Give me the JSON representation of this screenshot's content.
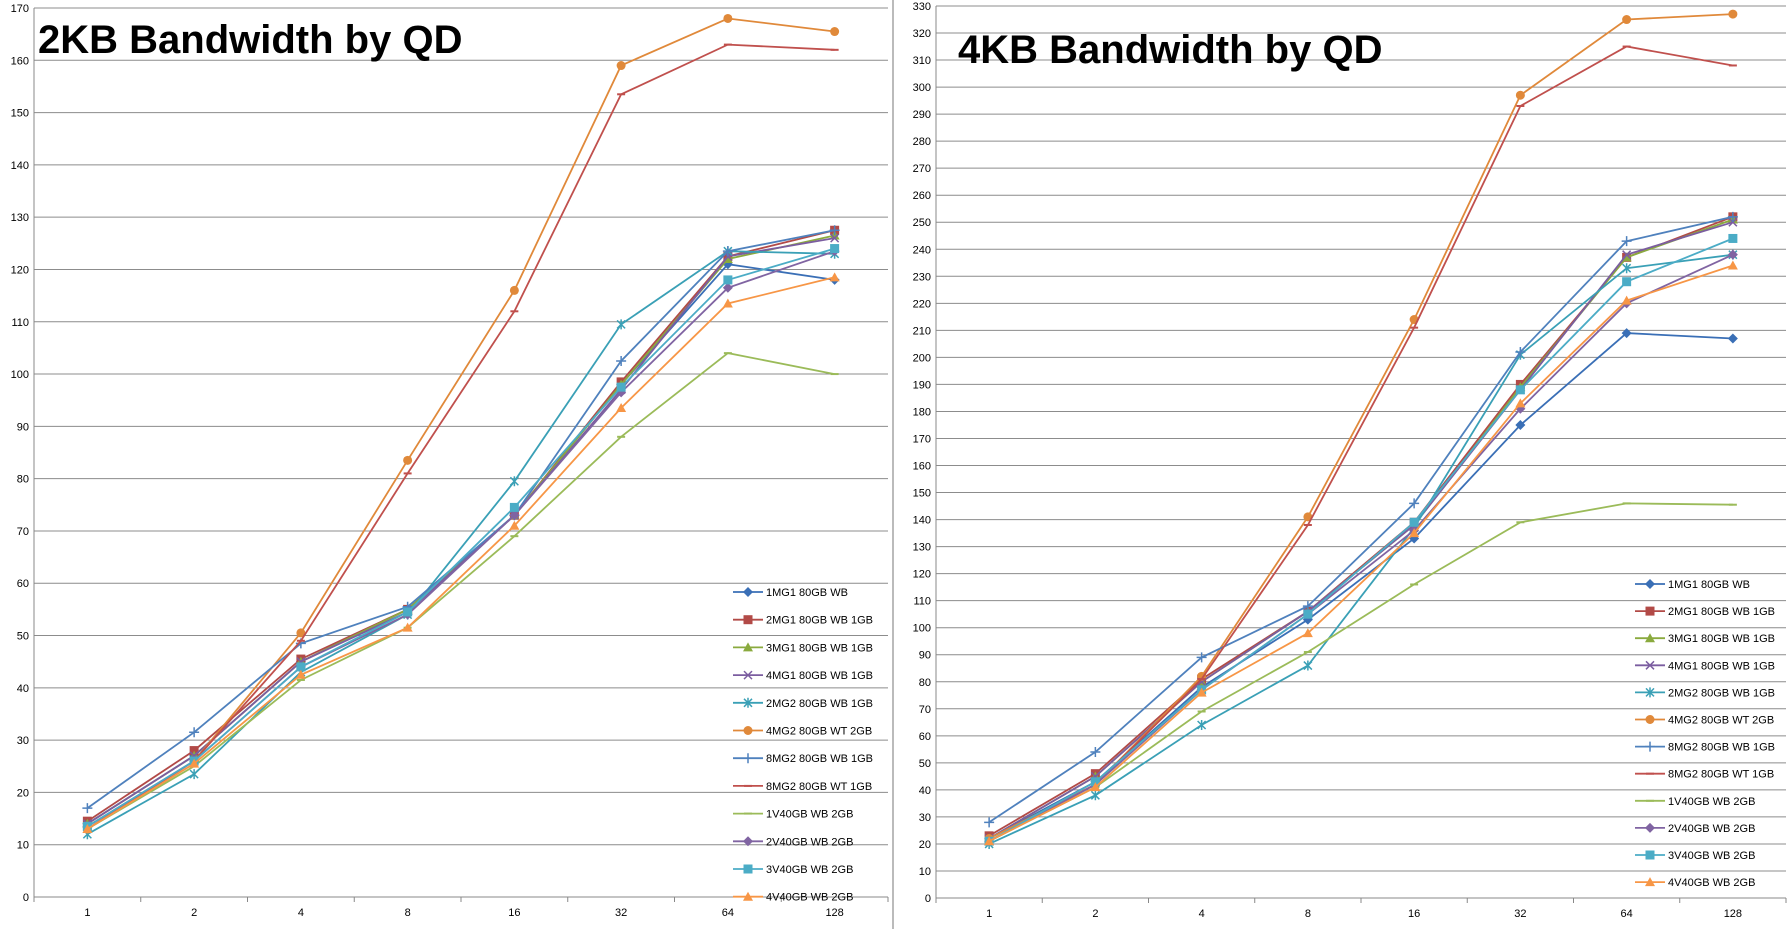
{
  "colors": {
    "1MG1": "#3a6fb6",
    "2MG1": "#b24a47",
    "3MG1": "#8aaa3e",
    "4MG1": "#7b5da0",
    "2MG2": "#3aa0b6",
    "4MG2": "#e0893a",
    "8MG2": "#4f81bd",
    "8MG2WT": "#c0504d",
    "1V40": "#9bbb59",
    "2V40": "#8064a2",
    "3V40": "#4bacc6",
    "4V40": "#f79646",
    "grid": "#8c8c8c",
    "axis": "#888888",
    "divider": "#bbbbbb"
  },
  "chart_data": [
    {
      "type": "line",
      "title": "2KB Bandwidth by QD",
      "xlabel": "",
      "ylabel": "",
      "categories": [
        "1",
        "2",
        "4",
        "8",
        "16",
        "32",
        "64",
        "128"
      ],
      "ylim": [
        0,
        170
      ],
      "ystep": 10,
      "grid": true,
      "legend_placement": "bottom-right",
      "series": [
        {
          "name": "1MG1 80GB WB",
          "marker": "diamond",
          "ckey": "1MG1",
          "values": [
            14,
            27,
            45,
            55,
            73,
            98,
            121,
            118
          ]
        },
        {
          "name": "2MG1 80GB WB 1GB",
          "marker": "square",
          "ckey": "2MG1",
          "values": [
            14.5,
            28,
            45.5,
            55,
            73,
            98.5,
            122.5,
            127.5
          ]
        },
        {
          "name": "3MG1 80GB WB 1GB",
          "marker": "triangle",
          "ckey": "3MG1",
          "values": [
            14,
            27,
            45,
            55,
            73,
            98,
            122,
            126.5
          ]
        },
        {
          "name": "4MG1 80GB WB 1GB",
          "marker": "x",
          "ckey": "4MG1",
          "values": [
            14,
            27,
            45,
            54.5,
            73,
            97,
            122.5,
            126
          ]
        },
        {
          "name": "2MG2 80GB WB 1GB",
          "marker": "star",
          "ckey": "2MG2",
          "values": [
            12,
            23.5,
            43,
            54,
            79.5,
            109.5,
            123.5,
            123
          ]
        },
        {
          "name": "4MG2 80GB WT 2GB",
          "marker": "circle",
          "ckey": "4MG2",
          "values": [
            13,
            26,
            50.5,
            83.5,
            116,
            159,
            168,
            165.5
          ]
        },
        {
          "name": "8MG2 80GB WB 1GB",
          "marker": "plus",
          "ckey": "8MG2",
          "values": [
            17,
            31.5,
            48.5,
            55.5,
            73,
            102.5,
            123.5,
            127.5
          ]
        },
        {
          "name": "8MG2 80GB WT 1GB",
          "marker": "dash",
          "ckey": "8MG2WT",
          "values": [
            13,
            26,
            49,
            81,
            112,
            153.5,
            163,
            162
          ]
        },
        {
          "name": "1V40GB WB 2GB",
          "marker": "dash",
          "ckey": "1V40",
          "values": [
            13,
            25,
            41.5,
            51.5,
            69,
            88,
            104,
            100
          ]
        },
        {
          "name": "2V40GB WB 2GB",
          "marker": "diamond",
          "ckey": "2V40",
          "values": [
            13.5,
            26,
            44,
            54,
            73,
            96.5,
            116.5,
            123.5
          ]
        },
        {
          "name": "3V40GB WB 2GB",
          "marker": "square",
          "ckey": "3V40",
          "values": [
            13.5,
            26,
            44,
            54.5,
            74.5,
            97.5,
            118,
            124
          ]
        },
        {
          "name": "4V40GB WB 2GB",
          "marker": "triangle",
          "ckey": "4V40",
          "values": [
            13,
            25.5,
            42.5,
            51.5,
            71,
            93.5,
            113.5,
            118.5
          ]
        }
      ]
    },
    {
      "type": "line",
      "title": "4KB Bandwidth by QD",
      "xlabel": "",
      "ylabel": "",
      "categories": [
        "1",
        "2",
        "4",
        "8",
        "16",
        "32",
        "64",
        "128"
      ],
      "ylim": [
        0,
        330
      ],
      "ystep": 10,
      "grid": true,
      "legend_placement": "bottom-right",
      "series": [
        {
          "name": "1MG1 80GB WB",
          "marker": "diamond",
          "ckey": "1MG1",
          "values": [
            22,
            43,
            78,
            103,
            133,
            175,
            209,
            207
          ]
        },
        {
          "name": "2MG1 80GB WB 1GB",
          "marker": "square",
          "ckey": "2MG1",
          "values": [
            23,
            46,
            81,
            106,
            139,
            190,
            237,
            252
          ]
        },
        {
          "name": "3MG1 80GB WB 1GB",
          "marker": "triangle",
          "ckey": "3MG1",
          "values": [
            22,
            45,
            80,
            106,
            138,
            189,
            237,
            251
          ]
        },
        {
          "name": "4MG1 80GB WB 1GB",
          "marker": "x",
          "ckey": "4MG1",
          "values": [
            22,
            45,
            80,
            106,
            138,
            188,
            238,
            250
          ]
        },
        {
          "name": "2MG2 80GB WB 1GB",
          "marker": "star",
          "ckey": "2MG2",
          "values": [
            20,
            38,
            64,
            86,
            137,
            201,
            233,
            238
          ]
        },
        {
          "name": "4MG2 80GB WT 2GB",
          "marker": "circle",
          "ckey": "4MG2",
          "values": [
            22,
            42,
            82,
            141,
            214,
            297,
            325,
            327
          ]
        },
        {
          "name": "8MG2 80GB WB 1GB",
          "marker": "plus",
          "ckey": "8MG2",
          "values": [
            28,
            54,
            89,
            108,
            146,
            202,
            243,
            252
          ]
        },
        {
          "name": "8MG2 80GB WT 1GB",
          "marker": "dash",
          "ckey": "8MG2WT",
          "values": [
            21,
            42,
            81,
            138,
            211,
            293,
            315,
            308
          ]
        },
        {
          "name": "1V40GB WB 2GB",
          "marker": "dash",
          "ckey": "1V40",
          "values": [
            21,
            41,
            69,
            91,
            116,
            139,
            146,
            145.5
          ]
        },
        {
          "name": "2V40GB WB 2GB",
          "marker": "diamond",
          "ckey": "2V40",
          "values": [
            21,
            42,
            77,
            105,
            136,
            181,
            220,
            238
          ]
        },
        {
          "name": "3V40GB WB 2GB",
          "marker": "square",
          "ckey": "3V40",
          "values": [
            21,
            43,
            77,
            105,
            139,
            188,
            228,
            244
          ]
        },
        {
          "name": "4V40GB WB 2GB",
          "marker": "triangle",
          "ckey": "4V40",
          "values": [
            21,
            41,
            76,
            98,
            135,
            183,
            221,
            234
          ]
        }
      ]
    }
  ]
}
